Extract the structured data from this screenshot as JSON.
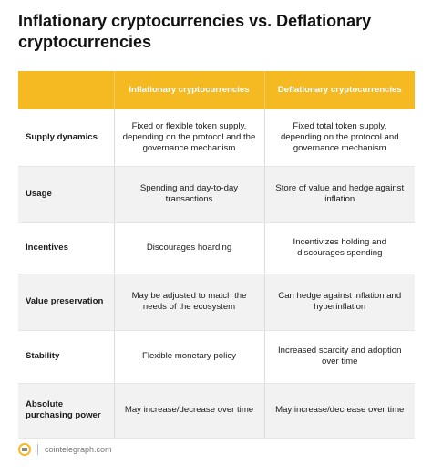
{
  "header": {
    "title": "Inflationary cryptocurrencies vs. Deflationary cryptocurrencies"
  },
  "table": {
    "columns": [
      "Inflationary cryptocurrencies",
      "Deflationary cryptocurrencies"
    ],
    "rows": [
      [
        "Supply dynamics",
        "Fixed or flexible token supply, depending on the protocol and the governance mechanism",
        "Fixed total token supply, depending on the protocol and governance mechanism"
      ],
      [
        "Usage",
        "Spending and day-to-day transactions",
        "Store of value and hedge against inflation"
      ],
      [
        "Incentives",
        "Discourages hoarding",
        "Incentivizes holding and discourages spending"
      ],
      [
        "Value preservation",
        "May be adjusted to match the needs of the ecosystem",
        "Can hedge against inflation and hyperinflation"
      ],
      [
        "Stability",
        "Flexible monetary policy",
        "Increased scarcity and adoption over time"
      ],
      [
        "Absolute purchasing power",
        "May increase/decrease over time",
        "May increase/decrease over time"
      ]
    ]
  },
  "footer": {
    "source": "cointelegraph.com"
  }
}
